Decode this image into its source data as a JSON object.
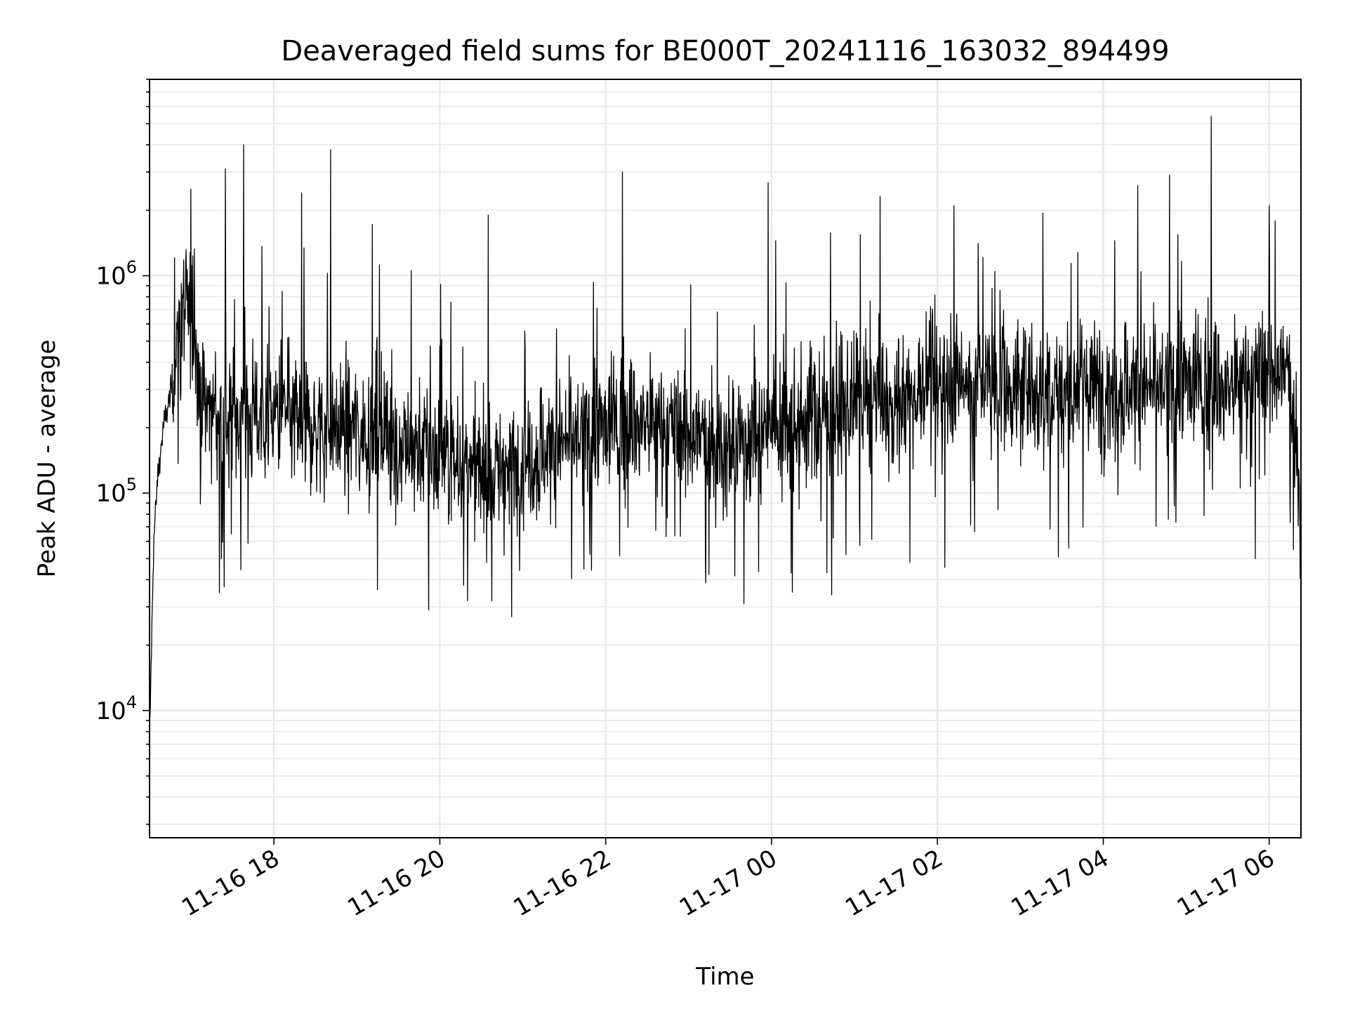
{
  "chart_data": {
    "type": "line",
    "title": "Deaveraged field sums for BE000T_20241116_163032_894499",
    "xlabel": "Time",
    "ylabel": "Peak ADU - average",
    "y_scale": "log",
    "grid": true,
    "legend": "none",
    "xlim": [
      "2024-11-16 16:30",
      "2024-11-17 06:23"
    ],
    "ylim": [
      2600,
      8000000
    ],
    "x_ticks": [
      {
        "t": "2024-11-16 18:00",
        "label": "11-16 18"
      },
      {
        "t": "2024-11-16 20:00",
        "label": "11-16 20"
      },
      {
        "t": "2024-11-16 22:00",
        "label": "11-16 22"
      },
      {
        "t": "2024-11-17 00:00",
        "label": "11-17 00"
      },
      {
        "t": "2024-11-17 02:00",
        "label": "11-17 02"
      },
      {
        "t": "2024-11-17 04:00",
        "label": "11-17 04"
      },
      {
        "t": "2024-11-17 06:00",
        "label": "11-17 06"
      }
    ],
    "y_ticks": [
      {
        "value": 10000,
        "base": "10",
        "exp": "4"
      },
      {
        "value": 100000,
        "base": "10",
        "exp": "5"
      },
      {
        "value": 1000000,
        "base": "10",
        "exp": "6"
      }
    ],
    "series": [
      {
        "color": "#000000",
        "points": [
          [
            "2024-11-16 16:30",
            7000
          ],
          [
            "2024-11-16 16:33",
            60000
          ],
          [
            "2024-11-16 16:36",
            120000
          ],
          [
            "2024-11-16 16:40",
            200000
          ],
          [
            "2024-11-16 16:45",
            280000
          ],
          [
            "2024-11-16 16:50",
            500000
          ],
          [
            "2024-11-16 16:55",
            700000
          ],
          [
            "2024-11-16 17:00",
            600000
          ],
          [
            "2024-11-16 17:10",
            250000
          ],
          [
            "2024-11-16 17:30",
            220000
          ],
          [
            "2024-11-16 18:00",
            230000
          ],
          [
            "2024-11-16 18:30",
            200000
          ],
          [
            "2024-11-16 19:00",
            200000
          ],
          [
            "2024-11-16 19:30",
            170000
          ],
          [
            "2024-11-16 20:00",
            150000
          ],
          [
            "2024-11-16 20:30",
            120000
          ],
          [
            "2024-11-16 21:00",
            140000
          ],
          [
            "2024-11-16 21:30",
            170000
          ],
          [
            "2024-11-16 22:00",
            200000
          ],
          [
            "2024-11-16 22:30",
            210000
          ],
          [
            "2024-11-16 23:00",
            190000
          ],
          [
            "2024-11-16 23:30",
            160000
          ],
          [
            "2024-11-17 00:00",
            220000
          ],
          [
            "2024-11-17 00:30",
            230000
          ],
          [
            "2024-11-17 01:00",
            250000
          ],
          [
            "2024-11-17 01:30",
            260000
          ],
          [
            "2024-11-17 02:00",
            350000
          ],
          [
            "2024-11-17 02:30",
            320000
          ],
          [
            "2024-11-17 03:00",
            300000
          ],
          [
            "2024-11-17 03:30",
            300000
          ],
          [
            "2024-11-17 04:00",
            310000
          ],
          [
            "2024-11-17 04:30",
            300000
          ],
          [
            "2024-11-17 05:00",
            320000
          ],
          [
            "2024-11-17 05:30",
            300000
          ],
          [
            "2024-11-17 06:00",
            380000
          ],
          [
            "2024-11-17 06:15",
            350000
          ],
          [
            "2024-11-17 06:23",
            90000
          ]
        ],
        "spikes": [
          [
            "2024-11-16 17:00",
            2500000
          ],
          [
            "2024-11-16 17:25",
            3100000
          ],
          [
            "2024-11-16 17:38",
            4000000
          ],
          [
            "2024-11-16 18:41",
            3800000
          ],
          [
            "2024-11-16 18:20",
            2400000
          ],
          [
            "2024-11-16 22:12",
            3000000
          ],
          [
            "2024-11-17 05:18",
            5400000
          ],
          [
            "2024-11-17 04:48",
            2900000
          ],
          [
            "2024-11-17 04:25",
            2600000
          ],
          [
            "2024-11-17 06:00",
            2100000
          ],
          [
            "2024-11-16 20:35",
            1900000
          ],
          [
            "2024-11-17 02:12",
            2100000
          ],
          [
            "2024-11-16 20:52",
            27000
          ],
          [
            "2024-11-16 19:52",
            29000
          ],
          [
            "2024-11-16 20:20",
            32000
          ],
          [
            "2024-11-16 19:15",
            36000
          ],
          [
            "2024-11-16 23:40",
            31000
          ],
          [
            "2024-11-17 00:15",
            35000
          ],
          [
            "2024-11-16 17:22",
            50000
          ],
          [
            "2024-11-17 05:50",
            50000
          ],
          [
            "2024-11-17 00:40",
            43000
          ]
        ]
      }
    ]
  }
}
